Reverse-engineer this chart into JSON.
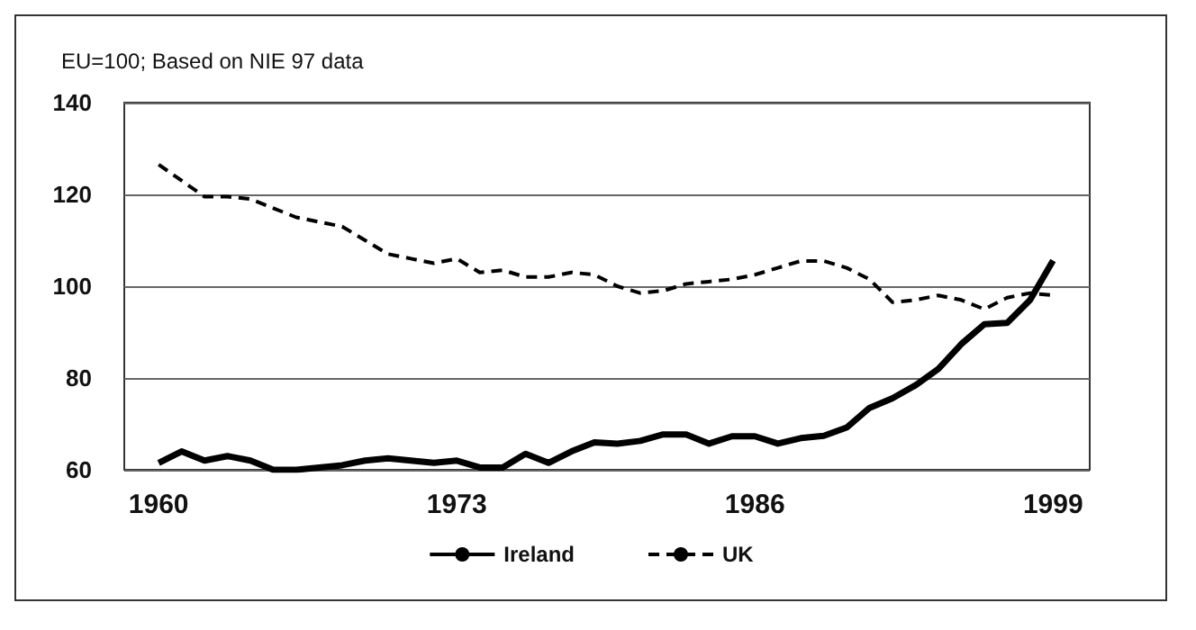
{
  "chart_data": {
    "type": "line",
    "subtitle": "EU=100; Based on NIE 97 data",
    "x": [
      1960,
      1961,
      1962,
      1963,
      1964,
      1965,
      1966,
      1967,
      1968,
      1969,
      1970,
      1971,
      1972,
      1973,
      1974,
      1975,
      1976,
      1977,
      1978,
      1979,
      1980,
      1981,
      1982,
      1983,
      1984,
      1985,
      1986,
      1987,
      1988,
      1989,
      1990,
      1991,
      1992,
      1993,
      1994,
      1995,
      1996,
      1997,
      1998,
      1999
    ],
    "series": [
      {
        "name": "Ireland",
        "color": "#000000",
        "line_style": "solid",
        "values": [
          61.5,
          64,
          62,
          63,
          62,
          60,
          60,
          60.5,
          61,
          62,
          62.5,
          62,
          61.5,
          62,
          60.5,
          60.5,
          63.5,
          61.5,
          64,
          66,
          65.7,
          66.3,
          67.7,
          67.7,
          65.7,
          67.3,
          67.3,
          65.7,
          66.9,
          67.4,
          69.2,
          73.5,
          75.6,
          78.4,
          82,
          87.4,
          91.7,
          92,
          97,
          105.6
        ]
      },
      {
        "name": "UK",
        "color": "#000000",
        "line_style": "dashed",
        "values": [
          126.5,
          123,
          119.5,
          119.5,
          119,
          117,
          115,
          114,
          113,
          110,
          107,
          106,
          105,
          106,
          103,
          103.5,
          102,
          102,
          103,
          102.5,
          100,
          98.5,
          99,
          100.5,
          101,
          101.5,
          102.5,
          104,
          105.5,
          105.5,
          104,
          101.5,
          96.5,
          97,
          98,
          97,
          95,
          97.5,
          98.5,
          98
        ]
      }
    ],
    "xlim": [
      1958.5,
      2000.6
    ],
    "xticks": [
      1960,
      1973,
      1986,
      1999
    ],
    "ylim": [
      60,
      140
    ],
    "yticks": [
      60,
      80,
      100,
      120,
      140
    ],
    "grid": "y",
    "legend": "bottom",
    "marker": "none"
  }
}
